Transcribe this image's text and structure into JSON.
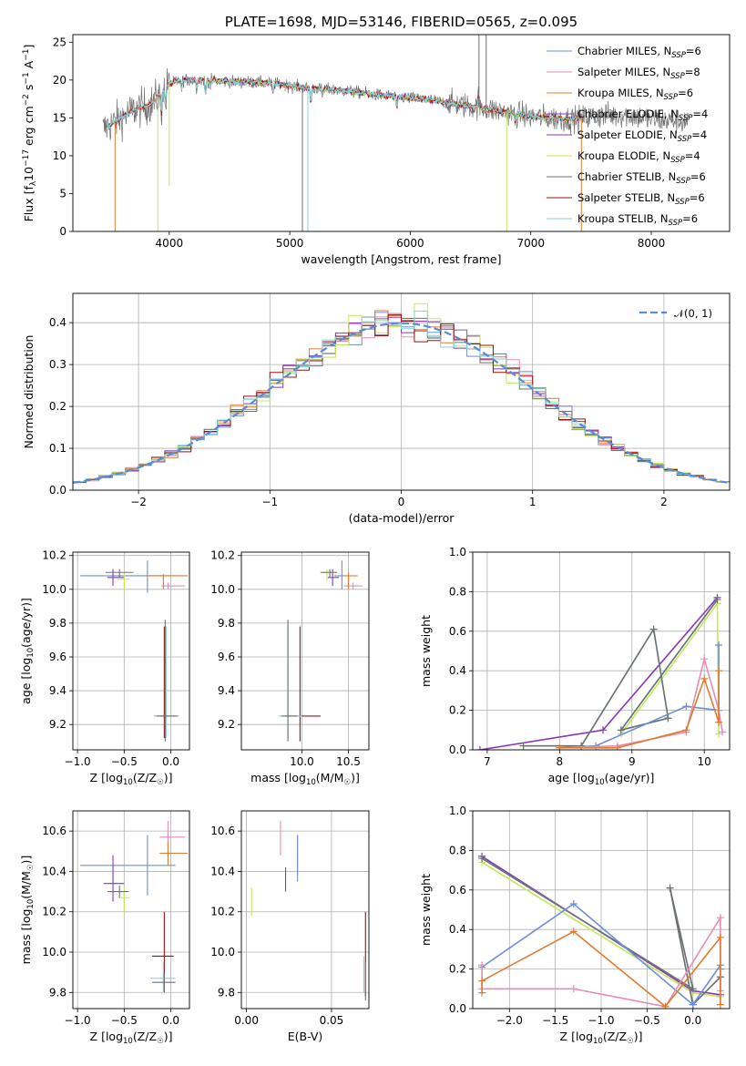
{
  "colors": {
    "chabrier_miles": "#6a8fd8",
    "salpeter_miles": "#e58cb8",
    "kroupa_miles": "#e07b2f",
    "chabrier_elodie": "#8a35b8",
    "salpeter_elodie": "#8a35b8",
    "kroupa_elodie": "#c2e85a",
    "chabrier_stelib": "#707070",
    "salpeter_stelib": "#9b1010",
    "kroupa_stelib": "#7fd6db",
    "normal": "#5b8bd6",
    "grid": "#b0b0b0"
  },
  "chart_data": [
    {
      "id": "spectrum",
      "type": "line",
      "title": "PLATE=1698, MJD=53146, FIBERID=0565, z=0.095",
      "xlabel": "wavelength [Angstrom, rest frame]",
      "ylabel": "Flux [f_λ10^-17 erg cm^-2 s^-1 A^-1]",
      "xlim": [
        3200,
        8650
      ],
      "ylim": [
        0,
        26
      ],
      "xticks": [
        4000,
        5000,
        6000,
        7000,
        8000
      ],
      "yticks": [
        0,
        5,
        10,
        15,
        20,
        25
      ],
      "grid": false,
      "legend_position": "top-right",
      "legend": [
        {
          "text": "Chabrier MILES, N_SSP=6",
          "color": "chabrier_miles"
        },
        {
          "text": "Salpeter MILES, N_SSP=8",
          "color": "salpeter_miles"
        },
        {
          "text": "Kroupa MILES, N_SSP=6",
          "color": "kroupa_miles"
        },
        {
          "text": "Chabrier ELODIE, N_SSP=4",
          "color": "chabrier_elodie"
        },
        {
          "text": "Salpeter ELODIE, N_SSP=4",
          "color": "salpeter_elodie"
        },
        {
          "text": "Kroupa ELODIE, N_SSP=4",
          "color": "kroupa_elodie"
        },
        {
          "text": "Chabrier STELIB, N_SSP=6",
          "color": "chabrier_stelib"
        },
        {
          "text": "Salpeter STELIB, N_SSP=6",
          "color": "salpeter_stelib"
        },
        {
          "text": "Kroupa STELIB, N_SSP=6",
          "color": "kroupa_stelib"
        }
      ],
      "continuum": [
        [
          3450,
          13.5
        ],
        [
          3550,
          14.5
        ],
        [
          3700,
          16.0
        ],
        [
          3850,
          16.8
        ],
        [
          4000,
          19.5
        ],
        [
          4100,
          20.0
        ],
        [
          4300,
          20.0
        ],
        [
          4500,
          19.8
        ],
        [
          4700,
          19.7
        ],
        [
          4900,
          19.5
        ],
        [
          5100,
          19.0
        ],
        [
          5300,
          18.8
        ],
        [
          5500,
          18.5
        ],
        [
          5800,
          17.9
        ],
        [
          6100,
          17.5
        ],
        [
          6400,
          16.8
        ],
        [
          6700,
          16.0
        ],
        [
          7000,
          15.2
        ],
        [
          7300,
          14.8
        ],
        [
          7600,
          15.3
        ],
        [
          7800,
          15.4
        ],
        [
          8000,
          14.8
        ],
        [
          8200,
          14.6
        ],
        [
          8310,
          14.5
        ]
      ],
      "data_range": [
        3450,
        8310
      ],
      "model_range": [
        3540,
        7410
      ],
      "noisy_range": [
        6300,
        7450
      ],
      "absorption_lines": [
        [
          3934,
          3.0
        ],
        [
          3969,
          2.5
        ],
        [
          4102,
          1.2
        ],
        [
          4227,
          1.0
        ],
        [
          4300,
          2.0
        ],
        [
          4340,
          1.0
        ],
        [
          4861,
          1.2
        ],
        [
          5175,
          2.0
        ],
        [
          5270,
          1.0
        ],
        [
          5890,
          1.5
        ],
        [
          6563,
          -1.5
        ],
        [
          6870,
          1.0
        ]
      ],
      "spikes": [
        [
          3550,
          0
        ],
        [
          3905,
          0
        ],
        [
          4000,
          6
        ],
        [
          5105,
          0
        ],
        [
          5150,
          0
        ],
        [
          6800,
          0
        ],
        [
          7420,
          0
        ],
        [
          6570,
          26
        ],
        [
          6630,
          26
        ]
      ]
    },
    {
      "id": "residuals",
      "type": "line",
      "xlabel": "(data-model)/error",
      "ylabel": "Normed distribution",
      "xlim": [
        -2.5,
        2.5
      ],
      "ylim": [
        0,
        0.47
      ],
      "xticks": [
        -2,
        -1,
        0,
        1,
        2
      ],
      "yticks": [
        0.0,
        0.1,
        0.2,
        0.3,
        0.4
      ],
      "grid": true,
      "legend_position": "top-right",
      "legend": [
        {
          "text": "𝒩(0, 1)",
          "color": "normal",
          "dashed": true
        }
      ],
      "bin_width": 0.1
    },
    {
      "id": "age-vs-Z",
      "type": "scatter",
      "xlabel": "Z [log10(Z/Z☉)]",
      "ylabel": "age [log10(age/yr)]",
      "xlim": [
        -1.05,
        0.2
      ],
      "ylim": [
        9.05,
        10.22
      ],
      "xticks": [
        -1.0,
        -0.5,
        0.0
      ],
      "yticks": [
        9.2,
        9.4,
        9.6,
        9.8,
        10.0,
        10.2
      ],
      "grid": true,
      "points": [
        {
          "c": "chabrier_miles",
          "x": -0.25,
          "y": 10.08,
          "xl": -0.97,
          "xh": 0.05,
          "yl": 9.98,
          "yh": 10.17
        },
        {
          "c": "salpeter_miles",
          "x": -0.03,
          "y": 10.02,
          "xl": -0.1,
          "xh": 0.15,
          "yl": 10.0,
          "yh": 10.04
        },
        {
          "c": "kroupa_miles",
          "x": -0.08,
          "y": 10.08,
          "xl": -0.25,
          "xh": 0.18,
          "yl": 10.0,
          "yh": 10.09
        },
        {
          "c": "chabrier_elodie",
          "x": -0.62,
          "y": 10.07,
          "xl": -0.68,
          "xh": -0.5,
          "yl": 10.02,
          "yh": 10.12
        },
        {
          "c": "kroupa_elodie",
          "x": -0.5,
          "y": 10.06,
          "xl": -0.57,
          "xh": -0.44,
          "yl": 10.0,
          "yh": 10.09
        },
        {
          "c": "chabrier_stelib",
          "x": -0.55,
          "y": 10.1,
          "xl": -0.7,
          "xh": -0.4,
          "yl": 10.07,
          "yh": 10.12
        },
        {
          "c": "salpeter_stelib",
          "x": -0.07,
          "y": 9.25,
          "xl": -0.18,
          "xh": 0.05,
          "yl": 9.12,
          "yh": 9.78
        },
        {
          "c": "kroupa_stelib",
          "x": -0.05,
          "y": 9.25,
          "xl": -0.18,
          "xh": 0.05,
          "yl": 9.12,
          "yh": 9.78
        },
        {
          "c": "chabrier_stelib",
          "x": -0.06,
          "y": 9.25,
          "xl": -0.15,
          "xh": 0.08,
          "yl": 9.1,
          "yh": 9.82
        }
      ]
    },
    {
      "id": "age-vs-mass",
      "type": "scatter",
      "xlabel": "mass [log10(M/M☉)]",
      "ylabel": "",
      "xlim": [
        9.35,
        10.72
      ],
      "ylim": [
        9.05,
        10.22
      ],
      "xticks": [
        10.0,
        10.5
      ],
      "yticks": [
        9.2,
        9.4,
        9.6,
        9.8,
        10.0,
        10.2
      ],
      "grid": true,
      "points": [
        {
          "c": "chabrier_miles",
          "x": 10.43,
          "y": 10.08,
          "xl": 10.35,
          "xh": 10.5,
          "yl": 10.0,
          "yh": 10.17
        },
        {
          "c": "salpeter_miles",
          "x": 10.55,
          "y": 10.02,
          "xl": 10.45,
          "xh": 10.65,
          "yl": 10.0,
          "yh": 10.04
        },
        {
          "c": "kroupa_miles",
          "x": 10.5,
          "y": 10.08,
          "xl": 10.45,
          "xh": 10.6,
          "yl": 10.0,
          "yh": 10.1
        },
        {
          "c": "chabrier_elodie",
          "x": 10.33,
          "y": 10.07,
          "xl": 10.28,
          "xh": 10.4,
          "yl": 10.02,
          "yh": 10.12
        },
        {
          "c": "kroupa_elodie",
          "x": 10.27,
          "y": 10.1,
          "xl": 10.2,
          "xh": 10.32,
          "yl": 10.05,
          "yh": 10.12
        },
        {
          "c": "chabrier_stelib",
          "x": 10.3,
          "y": 10.1,
          "xl": 10.2,
          "xh": 10.38,
          "yl": 10.07,
          "yh": 10.12
        },
        {
          "c": "salpeter_stelib",
          "x": 9.98,
          "y": 9.25,
          "xl": 9.82,
          "xh": 10.2,
          "yl": 9.1,
          "yh": 9.78
        },
        {
          "c": "kroupa_stelib",
          "x": 9.85,
          "y": 9.25,
          "xl": 9.75,
          "xh": 10.0,
          "yl": 9.12,
          "yh": 9.78
        },
        {
          "c": "chabrier_stelib",
          "x": 9.85,
          "y": 9.25,
          "xl": 9.78,
          "xh": 9.95,
          "yl": 9.1,
          "yh": 9.82
        }
      ]
    },
    {
      "id": "weight-vs-age",
      "type": "line",
      "xlabel": "age [log10(age/yr)]",
      "ylabel": "mass weight",
      "xlim": [
        6.8,
        10.35
      ],
      "ylim": [
        0,
        1.0
      ],
      "xticks": [
        7,
        8,
        9,
        10
      ],
      "yticks": [
        0.0,
        0.2,
        0.4,
        0.6,
        0.8,
        1.0
      ],
      "grid": true,
      "series": [
        {
          "c": "chabrier_elodie",
          "x": [
            6.9,
            8.6,
            10.18
          ],
          "y": [
            0.0,
            0.1,
            0.77
          ]
        },
        {
          "c": "kroupa_elodie",
          "x": [
            8.85,
            10.18,
            10.2
          ],
          "y": [
            0.08,
            0.74,
            0.08
          ]
        },
        {
          "c": "kroupa_stelib",
          "x": [
            7.5,
            8.3,
            9.3,
            9.5,
            8.85,
            10.18
          ],
          "y": [
            0.02,
            0.02,
            0.61,
            0.16,
            0.1,
            0.76
          ]
        },
        {
          "c": "chabrier_stelib",
          "x": [
            7.5,
            8.3,
            9.3,
            9.5,
            8.85,
            10.18
          ],
          "y": [
            0.02,
            0.02,
            0.61,
            0.16,
            0.1,
            0.76
          ]
        },
        {
          "c": "chabrier_miles",
          "x": [
            8.0,
            8.5,
            9.75,
            10.2,
            10.2
          ],
          "y": [
            0.01,
            0.02,
            0.22,
            0.2,
            0.53
          ]
        },
        {
          "c": "salpeter_miles",
          "x": [
            8.0,
            8.8,
            9.75,
            10.0,
            10.2,
            10.25
          ],
          "y": [
            0.01,
            0.02,
            0.09,
            0.46,
            0.2,
            0.09
          ]
        },
        {
          "c": "kroupa_miles",
          "x": [
            8.0,
            8.8,
            9.75,
            10.0,
            10.2,
            10.2
          ],
          "y": [
            0.01,
            0.01,
            0.1,
            0.36,
            0.14,
            0.4
          ]
        }
      ]
    },
    {
      "id": "mass-vs-Z",
      "type": "scatter",
      "xlabel": "Z [log10(Z/Z☉)]",
      "ylabel": "mass [log10(M/M☉)]",
      "xlim": [
        -1.05,
        0.2
      ],
      "ylim": [
        9.72,
        10.7
      ],
      "xticks": [
        -1.0,
        -0.5,
        0.0
      ],
      "yticks": [
        9.8,
        10.0,
        10.2,
        10.4,
        10.6
      ],
      "grid": true,
      "points": [
        {
          "c": "chabrier_miles",
          "x": -0.25,
          "y": 10.43,
          "xl": -0.97,
          "xh": 0.05,
          "yl": 10.28,
          "yh": 10.58
        },
        {
          "c": "salpeter_miles",
          "x": -0.03,
          "y": 10.57,
          "xl": -0.12,
          "xh": 0.15,
          "yl": 10.5,
          "yh": 10.65
        },
        {
          "c": "kroupa_miles",
          "x": -0.03,
          "y": 10.49,
          "xl": -0.12,
          "xh": 0.18,
          "yl": 10.43,
          "yh": 10.55
        },
        {
          "c": "chabrier_elodie",
          "x": -0.62,
          "y": 10.34,
          "xl": -0.72,
          "xh": -0.5,
          "yl": 10.25,
          "yh": 10.48
        },
        {
          "c": "kroupa_elodie",
          "x": -0.5,
          "y": 10.27,
          "xl": -0.57,
          "xh": -0.44,
          "yl": 10.2,
          "yh": 10.32
        },
        {
          "c": "chabrier_stelib",
          "x": -0.55,
          "y": 10.3,
          "xl": -0.68,
          "xh": -0.45,
          "yl": 10.27,
          "yh": 10.33
        },
        {
          "c": "salpeter_stelib",
          "x": -0.07,
          "y": 9.98,
          "xl": -0.2,
          "xh": 0.03,
          "yl": 9.8,
          "yh": 10.2
        },
        {
          "c": "kroupa_stelib",
          "x": -0.08,
          "y": 9.87,
          "xl": -0.22,
          "xh": 0.05,
          "yl": 9.8,
          "yh": 9.95
        },
        {
          "c": "chabrier_stelib",
          "x": -0.07,
          "y": 9.85,
          "xl": -0.2,
          "xh": 0.05,
          "yl": 9.8,
          "yh": 9.9
        }
      ]
    },
    {
      "id": "mass-vs-EBV",
      "type": "scatter",
      "xlabel": "E(B-V)",
      "ylabel": "",
      "xlim": [
        -0.003,
        0.072
      ],
      "ylim": [
        9.72,
        10.7
      ],
      "xticks": [
        0.0,
        0.05
      ],
      "yticks": [
        9.8,
        10.0,
        10.2,
        10.4,
        10.6
      ],
      "grid": true,
      "points": [
        {
          "c": "salpeter_miles",
          "x": 0.02,
          "y": 10.57,
          "xl": 0.02,
          "xh": 0.02,
          "yl": 10.48,
          "yh": 10.65
        },
        {
          "c": "kroupa_miles",
          "x": 0.03,
          "y": 10.49,
          "xl": 0.03,
          "xh": 0.03,
          "yl": 10.38,
          "yh": 10.58
        },
        {
          "c": "chabrier_elodie",
          "x": 0.023,
          "y": 10.34,
          "xl": 0.023,
          "xh": 0.023,
          "yl": 10.3,
          "yh": 10.42
        },
        {
          "c": "kroupa_elodie",
          "x": 0.003,
          "y": 10.27,
          "xl": 0.003,
          "xh": 0.003,
          "yl": 10.18,
          "yh": 10.32
        },
        {
          "c": "chabrier_miles",
          "x": 0.03,
          "y": 10.43,
          "xl": 0.03,
          "xh": 0.03,
          "yl": 10.35,
          "yh": 10.58
        },
        {
          "c": "salpeter_stelib",
          "x": 0.07,
          "y": 9.98,
          "xl": 0.07,
          "xh": 0.07,
          "yl": 9.78,
          "yh": 10.2
        },
        {
          "c": "kroupa_stelib",
          "x": 0.069,
          "y": 9.87,
          "xl": 0.069,
          "xh": 0.069,
          "yl": 9.8,
          "yh": 9.98
        },
        {
          "c": "chabrier_stelib",
          "x": 0.07,
          "y": 9.85,
          "xl": 0.07,
          "xh": 0.07,
          "yl": 9.76,
          "yh": 9.95
        }
      ]
    },
    {
      "id": "weight-vs-Z",
      "type": "line",
      "xlabel": "Z [log10(Z/Z☉)]",
      "ylabel": "mass weight",
      "xlim": [
        -2.4,
        0.4
      ],
      "ylim": [
        0,
        1.0
      ],
      "xticks": [
        -2.0,
        -1.5,
        -1.0,
        -0.5,
        0.0
      ],
      "yticks": [
        0.0,
        0.2,
        0.4,
        0.6,
        0.8,
        1.0
      ],
      "grid": true,
      "series": [
        {
          "c": "chabrier_elodie",
          "x": [
            -2.3,
            0.0,
            0.3
          ],
          "y": [
            0.77,
            0.09,
            0.07
          ]
        },
        {
          "c": "kroupa_elodie",
          "x": [
            -2.3,
            0.0,
            0.3
          ],
          "y": [
            0.74,
            0.08,
            0.06
          ]
        },
        {
          "c": "kroupa_stelib",
          "x": [
            -2.3,
            0.0,
            -0.25,
            0.0,
            0.3
          ],
          "y": [
            0.76,
            0.1,
            0.61,
            0.02,
            0.16
          ]
        },
        {
          "c": "chabrier_stelib",
          "x": [
            -2.3,
            0.0,
            -0.25,
            0.0,
            0.3
          ],
          "y": [
            0.76,
            0.1,
            0.61,
            0.02,
            0.16
          ]
        },
        {
          "c": "chabrier_miles",
          "x": [
            -2.3,
            -1.3,
            0.0,
            0.3,
            0.3
          ],
          "y": [
            0.21,
            0.53,
            0.02,
            0.22,
            0.2
          ]
        },
        {
          "c": "salpeter_miles",
          "x": [
            -2.3,
            -2.3,
            -1.3,
            -0.3,
            0.3,
            0.3
          ],
          "y": [
            0.22,
            0.1,
            0.1,
            0.01,
            0.46,
            0.09
          ]
        },
        {
          "c": "kroupa_miles",
          "x": [
            -2.3,
            -2.3,
            -1.3,
            -0.3,
            0.3,
            0.3
          ],
          "y": [
            0.08,
            0.14,
            0.39,
            0.01,
            0.36,
            0.02
          ]
        }
      ]
    }
  ]
}
